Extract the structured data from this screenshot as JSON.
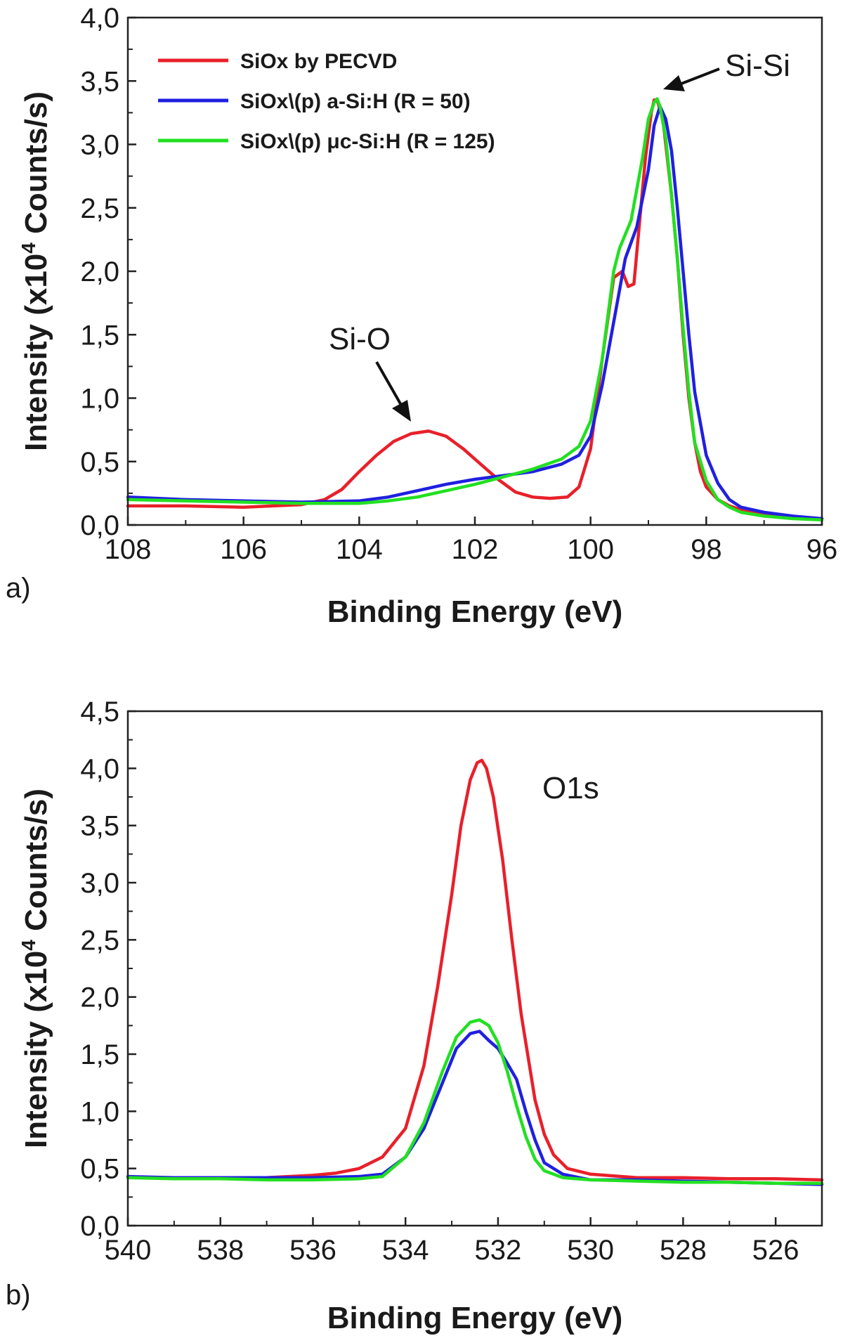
{
  "figure": {
    "panel_labels": [
      "a)",
      "b)"
    ]
  },
  "chart_data": [
    {
      "type": "line",
      "panel_label": "a)",
      "title": "",
      "xlabel": "Binding Energy (eV)",
      "ylabel": "Intensity (x10",
      "ylabel_sup": "4",
      "ylabel_end": " Counts/s)",
      "xlim": [
        108,
        96
      ],
      "ylim": [
        0,
        4.0
      ],
      "xticks": [
        108,
        106,
        104,
        102,
        100,
        98,
        96
      ],
      "xtick_labels": [
        "108",
        "106",
        "104",
        "102",
        "100",
        "98",
        "96"
      ],
      "yticks": [
        0,
        0.5,
        1.0,
        1.5,
        2.0,
        2.5,
        3.0,
        3.5,
        4.0
      ],
      "ytick_labels": [
        "0,0",
        "0,5",
        "1,0",
        "1,5",
        "2,0",
        "2,5",
        "3,0",
        "3,5",
        "4,0"
      ],
      "legend_position": "top-left",
      "annotations": [
        {
          "text": "Si-O",
          "x": 103.0,
          "y": 0.75
        },
        {
          "text": "Si-Si",
          "x": 98.9,
          "y": 3.35
        }
      ],
      "series": [
        {
          "name": "SiOx by PECVD",
          "color": "#e8202a",
          "x": [
            108,
            107,
            106,
            105.5,
            105,
            104.6,
            104.3,
            104.0,
            103.7,
            103.4,
            103.1,
            102.8,
            102.5,
            102.2,
            101.9,
            101.6,
            101.3,
            101.0,
            100.7,
            100.4,
            100.2,
            100.0,
            99.8,
            99.6,
            99.45,
            99.35,
            99.25,
            99.15,
            99.05,
            98.95,
            98.9,
            98.85,
            98.75,
            98.6,
            98.5,
            98.4,
            98.3,
            98.2,
            98.1,
            98.0,
            97.8,
            97.6,
            97.4,
            97.0,
            96.5,
            96.0
          ],
          "values": [
            0.15,
            0.15,
            0.14,
            0.15,
            0.16,
            0.2,
            0.28,
            0.42,
            0.55,
            0.66,
            0.72,
            0.74,
            0.7,
            0.6,
            0.48,
            0.36,
            0.26,
            0.22,
            0.21,
            0.22,
            0.3,
            0.6,
            1.3,
            1.95,
            2.0,
            1.88,
            1.9,
            2.4,
            2.9,
            3.25,
            3.35,
            3.35,
            3.2,
            2.6,
            2.1,
            1.5,
            1.0,
            0.65,
            0.42,
            0.3,
            0.2,
            0.15,
            0.12,
            0.08,
            0.06,
            0.05
          ]
        },
        {
          "name": "SiOx\\(p) a-Si:H (R = 50)",
          "color": "#2020e0",
          "x": [
            108,
            107,
            106,
            105,
            104,
            103.5,
            103.0,
            102.5,
            102.0,
            101.5,
            101.0,
            100.5,
            100.2,
            100.0,
            99.8,
            99.6,
            99.4,
            99.2,
            99.0,
            98.9,
            98.8,
            98.7,
            98.6,
            98.5,
            98.4,
            98.3,
            98.2,
            98.0,
            97.8,
            97.6,
            97.4,
            97.0,
            96.5,
            96.0
          ],
          "values": [
            0.22,
            0.2,
            0.19,
            0.18,
            0.19,
            0.22,
            0.27,
            0.32,
            0.36,
            0.39,
            0.42,
            0.48,
            0.55,
            0.7,
            1.1,
            1.6,
            2.1,
            2.35,
            2.8,
            3.15,
            3.3,
            3.2,
            2.95,
            2.5,
            2.0,
            1.5,
            1.05,
            0.55,
            0.33,
            0.2,
            0.14,
            0.1,
            0.07,
            0.05
          ]
        },
        {
          "name": "SiOx\\(p) μc-Si:H (R = 125)",
          "color": "#22e022",
          "x": [
            108,
            107,
            106,
            105,
            104,
            103.5,
            103.0,
            102.5,
            102.0,
            101.5,
            101.0,
            100.5,
            100.2,
            100.0,
            99.8,
            99.6,
            99.5,
            99.3,
            99.1,
            99.0,
            98.9,
            98.85,
            98.8,
            98.7,
            98.6,
            98.5,
            98.4,
            98.3,
            98.2,
            98.0,
            97.8,
            97.6,
            97.4,
            97.0,
            96.5,
            96.0
          ],
          "values": [
            0.2,
            0.19,
            0.18,
            0.17,
            0.17,
            0.19,
            0.22,
            0.27,
            0.32,
            0.38,
            0.44,
            0.52,
            0.62,
            0.82,
            1.3,
            2.0,
            2.18,
            2.4,
            2.9,
            3.2,
            3.33,
            3.36,
            3.3,
            3.05,
            2.6,
            2.1,
            1.55,
            1.05,
            0.65,
            0.35,
            0.2,
            0.14,
            0.1,
            0.07,
            0.05,
            0.04
          ]
        }
      ]
    },
    {
      "type": "line",
      "panel_label": "b)",
      "title": "",
      "xlabel": "Binding Energy (eV)",
      "ylabel": "Intensity (x10",
      "ylabel_sup": "4",
      "ylabel_end": " Counts/s)",
      "xlim": [
        540,
        525
      ],
      "ylim": [
        0,
        4.5
      ],
      "xticks": [
        540,
        538,
        536,
        534,
        532,
        530,
        528,
        526
      ],
      "xtick_labels": [
        "540",
        "538",
        "536",
        "534",
        "532",
        "530",
        "528",
        "526"
      ],
      "yticks": [
        0,
        0.5,
        1.0,
        1.5,
        2.0,
        2.5,
        3.0,
        3.5,
        4.0,
        4.5
      ],
      "ytick_labels": [
        "0,0",
        "0,5",
        "1,0",
        "1,5",
        "2,0",
        "2,5",
        "3,0",
        "3,5",
        "4,0",
        "4,5"
      ],
      "annotations": [
        {
          "text": "O1s",
          "x": 531.1,
          "y": 3.9
        }
      ],
      "series": [
        {
          "name": "SiOx by PECVD",
          "color": "#e8202a",
          "x": [
            540,
            539,
            538,
            537,
            536,
            535.5,
            535.0,
            534.5,
            534.0,
            533.6,
            533.3,
            533.0,
            532.8,
            532.6,
            532.45,
            532.35,
            532.25,
            532.1,
            531.9,
            531.7,
            531.5,
            531.2,
            531.0,
            530.8,
            530.5,
            530.0,
            529.0,
            528.0,
            527.0,
            526.0,
            525.0
          ],
          "values": [
            0.42,
            0.42,
            0.42,
            0.42,
            0.44,
            0.46,
            0.5,
            0.6,
            0.85,
            1.4,
            2.1,
            2.9,
            3.5,
            3.9,
            4.05,
            4.07,
            4.0,
            3.75,
            3.2,
            2.5,
            1.85,
            1.1,
            0.8,
            0.62,
            0.5,
            0.45,
            0.42,
            0.42,
            0.41,
            0.41,
            0.4
          ]
        },
        {
          "name": "SiOx\\(p) a-Si:H (R = 50)",
          "color": "#2020e0",
          "x": [
            540,
            539,
            538,
            537,
            536,
            535.0,
            534.5,
            534.0,
            533.6,
            533.2,
            532.9,
            532.6,
            532.4,
            532.2,
            532.0,
            531.8,
            531.6,
            531.4,
            531.2,
            531.0,
            530.6,
            530.0,
            529.0,
            528.0,
            527.0,
            526.0,
            525.0
          ],
          "values": [
            0.43,
            0.42,
            0.42,
            0.42,
            0.42,
            0.43,
            0.45,
            0.6,
            0.85,
            1.25,
            1.55,
            1.68,
            1.7,
            1.62,
            1.55,
            1.42,
            1.28,
            1.0,
            0.75,
            0.55,
            0.45,
            0.4,
            0.4,
            0.39,
            0.38,
            0.37,
            0.36
          ]
        },
        {
          "name": "SiOx\\(p) μc-Si:H (R = 125)",
          "color": "#22e022",
          "x": [
            540,
            539,
            538,
            537,
            536,
            535.0,
            534.5,
            534.0,
            533.6,
            533.2,
            532.9,
            532.6,
            532.4,
            532.2,
            532.0,
            531.8,
            531.6,
            531.4,
            531.2,
            531.0,
            530.6,
            530.0,
            529.0,
            528.0,
            527.0,
            526.0,
            525.0
          ],
          "values": [
            0.42,
            0.41,
            0.41,
            0.4,
            0.4,
            0.41,
            0.43,
            0.6,
            0.9,
            1.35,
            1.65,
            1.78,
            1.8,
            1.75,
            1.6,
            1.35,
            1.05,
            0.78,
            0.58,
            0.48,
            0.42,
            0.4,
            0.39,
            0.38,
            0.38,
            0.37,
            0.37
          ]
        }
      ]
    }
  ]
}
